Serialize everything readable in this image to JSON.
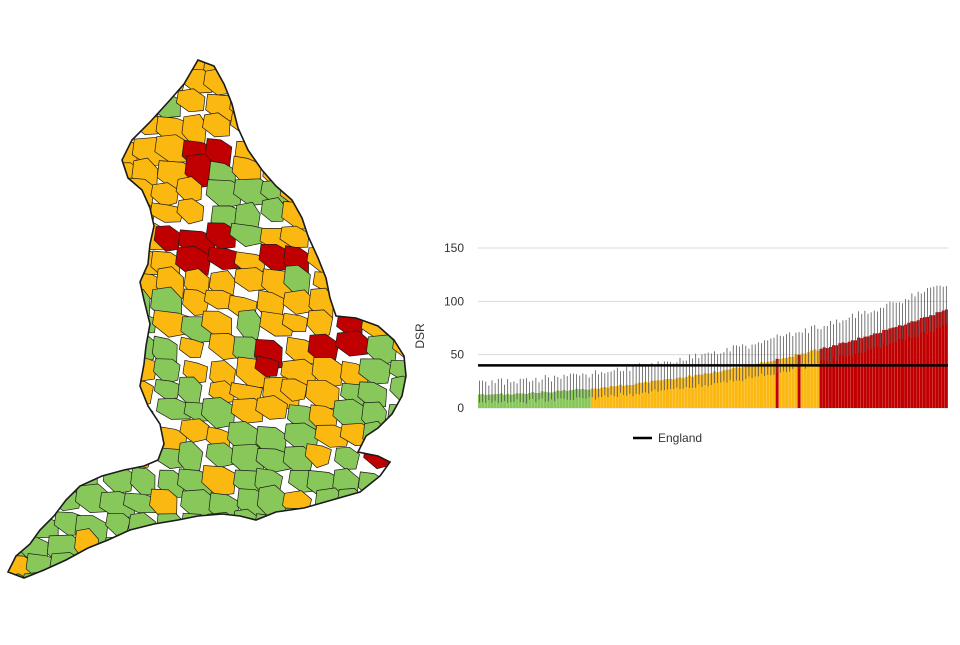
{
  "colors": {
    "green": "#88c85a",
    "amber": "#fbb810",
    "red": "#c00000",
    "border": "#1a1a1a",
    "error_bar": "#555555",
    "benchmark": "#000000",
    "grid": "#d9d9d9"
  },
  "map": {
    "legend_categories": [
      "green",
      "amber",
      "red"
    ]
  },
  "chart_data": {
    "type": "bar",
    "title": "",
    "xlabel": "",
    "ylabel": "DSR",
    "ylim": [
      0,
      150
    ],
    "yticks": [
      0,
      50,
      100,
      150
    ],
    "grid": true,
    "legend_position": "bottom-left",
    "n_bars": 150,
    "series": [
      {
        "name": "England",
        "type": "line",
        "value": 40
      }
    ],
    "value_range": {
      "min": 12,
      "max": 92
    },
    "category_counts": {
      "green": 36,
      "amber": 74,
      "red": 40
    }
  },
  "legend": {
    "england_label": "England"
  }
}
